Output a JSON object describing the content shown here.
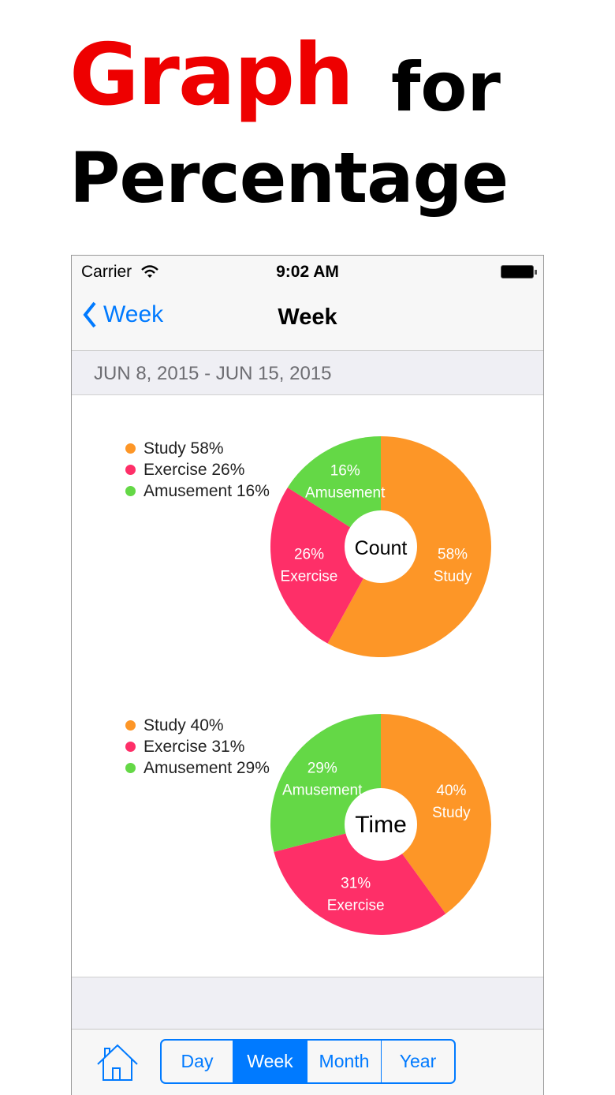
{
  "headline": {
    "word1": "Graph",
    "word2": "for",
    "line2": "Percentage"
  },
  "status_bar": {
    "carrier": "Carrier",
    "time": "9:02 AM",
    "icons": [
      "wifi-icon",
      "battery-icon"
    ]
  },
  "nav": {
    "back_label": "Week",
    "title": "Week"
  },
  "date_range": "JUN 8, 2015 - JUN 15, 2015",
  "colors": {
    "study": "#fd9627",
    "exercise": "#fe2f68",
    "amusement": "#64d846",
    "accent": "#007aff"
  },
  "chart_data": [
    {
      "type": "pie",
      "title": "Count",
      "categories": [
        "Study",
        "Exercise",
        "Amusement"
      ],
      "values": [
        58,
        26,
        16
      ],
      "legend": [
        "Study 58%",
        "Exercise 26%",
        "Amusement 16%"
      ],
      "slice_labels": [
        "58%",
        "26%",
        "16%"
      ],
      "legend_position": "top-left"
    },
    {
      "type": "pie",
      "title": "Time",
      "categories": [
        "Study",
        "Exercise",
        "Amusement"
      ],
      "values": [
        40,
        31,
        29
      ],
      "legend": [
        "Study 40%",
        "Exercise 31%",
        "Amusement 29%"
      ],
      "slice_labels": [
        "40%",
        "31%",
        "29%"
      ],
      "legend_position": "top-left"
    }
  ],
  "toolbar": {
    "home_icon": "home-icon",
    "segments": [
      "Day",
      "Week",
      "Month",
      "Year"
    ],
    "selected": "Week"
  }
}
